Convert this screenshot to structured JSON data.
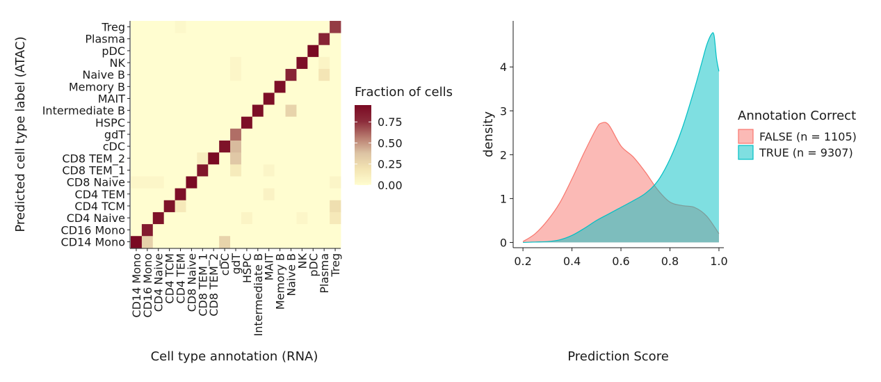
{
  "chart_data": [
    {
      "type": "heatmap",
      "xlabel": "Cell type annotation (RNA)",
      "ylabel": "Predicted cell type label (ATAC)",
      "categories": [
        "CD14 Mono",
        "CD16 Mono",
        "CD4 Naive",
        "CD4 TCM",
        "CD4 TEM",
        "CD8 Naive",
        "CD8 TEM_1",
        "CD8 TEM_2",
        "cDC",
        "gdT",
        "HSPC",
        "Intermediate B",
        "MAIT",
        "Memory B",
        "Naive B",
        "NK",
        "pDC",
        "Plasma",
        "Treg"
      ],
      "legend": {
        "title": "Fraction of cells",
        "ticks": [
          0.0,
          0.25,
          0.5,
          0.75
        ],
        "tick_labels": [
          "0.00",
          "0.25",
          "0.50",
          "0.75"
        ],
        "range": [
          0,
          0.95
        ],
        "colors": [
          "#fffdd0",
          "#f3e4b3",
          "#dcc3a3",
          "#b77a6e",
          "#8b2b3a",
          "#7a0a23"
        ]
      },
      "diagonal": [
        0.95,
        0.85,
        0.9,
        0.9,
        0.92,
        0.95,
        0.88,
        0.95,
        0.9,
        0.6,
        0.92,
        0.92,
        0.92,
        0.92,
        0.8,
        0.92,
        0.95,
        0.8,
        0.72
      ],
      "off_diagonal": [
        {
          "x": "CD16 Mono",
          "y": "CD14 Mono",
          "value": 0.3
        },
        {
          "x": "cDC",
          "y": "CD14 Mono",
          "value": 0.28
        },
        {
          "x": "CD4 TEM",
          "y": "CD4 TCM",
          "value": 0.15
        },
        {
          "x": "CD8 TEM_1",
          "y": "CD8 TEM_2",
          "value": 0.12
        },
        {
          "x": "gdT",
          "y": "cDC",
          "value": 0.4
        },
        {
          "x": "gdT",
          "y": "CD8 TEM_2",
          "value": 0.35
        },
        {
          "x": "gdT",
          "y": "CD8 TEM_1",
          "value": 0.14
        },
        {
          "x": "Naive B",
          "y": "Intermediate B",
          "value": 0.28
        },
        {
          "x": "Plasma",
          "y": "Naive B",
          "value": 0.18
        },
        {
          "x": "Treg",
          "y": "CD4 TCM",
          "value": 0.22
        },
        {
          "x": "Treg",
          "y": "CD4 Naive",
          "value": 0.15
        },
        {
          "x": "MAIT",
          "y": "CD4 TEM",
          "value": 0.08
        },
        {
          "x": "Plasma",
          "y": "NK",
          "value": 0.07
        },
        {
          "x": "HSPC",
          "y": "CD4 Naive",
          "value": 0.07
        },
        {
          "x": "NK",
          "y": "CD4 Naive",
          "value": 0.05
        },
        {
          "x": "gdT",
          "y": "Naive B",
          "value": 0.05
        },
        {
          "x": "MAIT",
          "y": "CD8 TEM_1",
          "value": 0.06
        },
        {
          "x": "CD14 Mono",
          "y": "CD8 Naive",
          "value": 0.05
        },
        {
          "x": "CD16 Mono",
          "y": "CD8 Naive",
          "value": 0.05
        },
        {
          "x": "CD4 Naive",
          "y": "CD8 Naive",
          "value": 0.05
        },
        {
          "x": "gdT",
          "y": "NK",
          "value": 0.05
        },
        {
          "x": "CD4 TEM",
          "y": "Treg",
          "value": 0.04
        },
        {
          "x": "Treg",
          "y": "CD8 Naive",
          "value": 0.06
        }
      ]
    },
    {
      "type": "area",
      "xlabel": "Prediction Score",
      "ylabel": "density",
      "xlim": [
        0.16,
        1.02
      ],
      "ylim": [
        -0.12,
        5.05
      ],
      "xticks": [
        0.2,
        0.4,
        0.6,
        0.8,
        1.0
      ],
      "xtick_labels": [
        "0.2",
        "0.4",
        "0.6",
        "0.8",
        "1.0"
      ],
      "yticks": [
        0,
        1,
        2,
        3,
        4
      ],
      "ytick_labels": [
        "0",
        "1",
        "2",
        "3",
        "4"
      ],
      "legend": {
        "title": "Annotation Correct"
      },
      "series": [
        {
          "name": "FALSE (n = 1105)",
          "color": "#f8766d",
          "fill": "#f9b1ac",
          "x": [
            0.2,
            0.25,
            0.3,
            0.35,
            0.4,
            0.45,
            0.5,
            0.52,
            0.55,
            0.6,
            0.65,
            0.7,
            0.75,
            0.8,
            0.85,
            0.9,
            0.95,
            1.0
          ],
          "y": [
            0.02,
            0.2,
            0.5,
            0.9,
            1.45,
            2.05,
            2.6,
            2.72,
            2.68,
            2.2,
            1.95,
            1.6,
            1.2,
            0.92,
            0.84,
            0.8,
            0.6,
            0.2
          ]
        },
        {
          "name": "TRUE (n = 9307)",
          "color": "#00bfc4",
          "fill": "#7fdde0",
          "x": [
            0.2,
            0.25,
            0.3,
            0.35,
            0.4,
            0.45,
            0.5,
            0.55,
            0.6,
            0.65,
            0.7,
            0.75,
            0.8,
            0.85,
            0.9,
            0.93,
            0.95,
            0.97,
            0.98,
            0.99,
            1.0
          ],
          "y": [
            0.0,
            0.01,
            0.02,
            0.06,
            0.16,
            0.32,
            0.5,
            0.65,
            0.8,
            0.95,
            1.12,
            1.4,
            1.9,
            2.6,
            3.5,
            4.1,
            4.5,
            4.75,
            4.72,
            4.2,
            3.9
          ]
        }
      ]
    }
  ]
}
